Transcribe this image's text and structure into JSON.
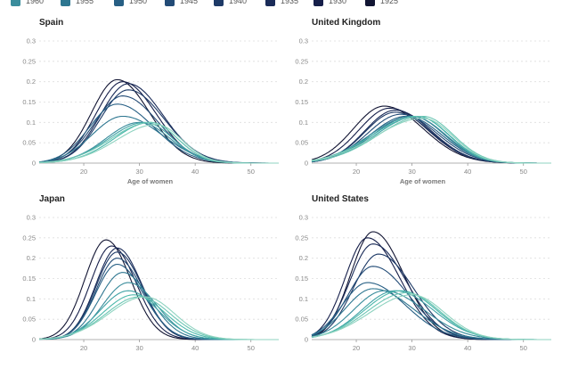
{
  "legend": [
    {
      "label": "1960",
      "color": "#3a8d9c"
    },
    {
      "label": "1955",
      "color": "#2d7690"
    },
    {
      "label": "1950",
      "color": "#275f84"
    },
    {
      "label": "1945",
      "color": "#224b76"
    },
    {
      "label": "1940",
      "color": "#1e3a67"
    },
    {
      "label": "1935",
      "color": "#1a2b58"
    },
    {
      "label": "1930",
      "color": "#161f4a"
    },
    {
      "label": "1925",
      "color": "#121533"
    }
  ],
  "chart_data": [
    {
      "type": "line",
      "title": "Spain",
      "xlabel": "Age of women",
      "ylabel": "",
      "xlim": [
        12,
        55
      ],
      "ylim": [
        0,
        0.3
      ],
      "xticks": [
        20,
        30,
        40,
        50
      ],
      "yticks": [
        0,
        0.05,
        0.1,
        0.15,
        0.2,
        0.25,
        0.3
      ],
      "grid": true,
      "series_params": [
        {
          "peak": 26,
          "h": 0.205,
          "sl": 4.6,
          "sr": 5.8,
          "color": "#121533"
        },
        {
          "peak": 27,
          "h": 0.2,
          "sl": 4.8,
          "sr": 6.0,
          "color": "#161f4a"
        },
        {
          "peak": 28,
          "h": 0.195,
          "sl": 5.0,
          "sr": 6.2,
          "color": "#1a2b58"
        },
        {
          "peak": 28,
          "h": 0.18,
          "sl": 5.0,
          "sr": 6.4,
          "color": "#1e3a67"
        },
        {
          "peak": 27,
          "h": 0.165,
          "sl": 5.0,
          "sr": 6.4,
          "color": "#224b76"
        },
        {
          "peak": 26,
          "h": 0.145,
          "sl": 5.0,
          "sr": 6.6,
          "color": "#275f84"
        },
        {
          "peak": 27,
          "h": 0.115,
          "sl": 5.5,
          "sr": 7.0,
          "color": "#2d7690"
        },
        {
          "peak": 30,
          "h": 0.1,
          "sl": 6.0,
          "sr": 5.5,
          "color": "#3a8d9c"
        },
        {
          "peak": 31,
          "h": 0.1,
          "sl": 6.5,
          "sr": 5.0,
          "color": "#41a3a6"
        },
        {
          "peak": 32,
          "h": 0.1,
          "sl": 6.5,
          "sr": 4.8,
          "color": "#4cb8ab"
        },
        {
          "peak": 32,
          "h": 0.1,
          "sl": 7.0,
          "sr": 4.8,
          "color": "#6cc6b4"
        },
        {
          "peak": 33,
          "h": 0.095,
          "sl": 7.0,
          "sr": 4.6,
          "color": "#8fd3c0"
        }
      ]
    },
    {
      "type": "line",
      "title": "United Kingdom",
      "xlabel": "Age of women",
      "ylabel": "",
      "xlim": [
        12,
        55
      ],
      "ylim": [
        0,
        0.3
      ],
      "xticks": [
        20,
        30,
        40,
        50
      ],
      "yticks": [
        0,
        0.05,
        0.1,
        0.15,
        0.2,
        0.25,
        0.3
      ],
      "grid": true,
      "series_params": [
        {
          "peak": 25,
          "h": 0.14,
          "sl": 5.5,
          "sr": 7.0,
          "color": "#121533"
        },
        {
          "peak": 26,
          "h": 0.135,
          "sl": 5.5,
          "sr": 6.8,
          "color": "#161f4a"
        },
        {
          "peak": 27,
          "h": 0.13,
          "sl": 5.5,
          "sr": 6.5,
          "color": "#1a2b58"
        },
        {
          "peak": 27,
          "h": 0.125,
          "sl": 5.5,
          "sr": 6.5,
          "color": "#1e3a67"
        },
        {
          "peak": 28,
          "h": 0.12,
          "sl": 6.0,
          "sr": 6.5,
          "color": "#224b76"
        },
        {
          "peak": 29,
          "h": 0.115,
          "sl": 6.5,
          "sr": 6.3,
          "color": "#275f84"
        },
        {
          "peak": 30,
          "h": 0.115,
          "sl": 7.0,
          "sr": 6.0,
          "color": "#2d7690"
        },
        {
          "peak": 30,
          "h": 0.115,
          "sl": 7.5,
          "sr": 5.8,
          "color": "#3a8d9c"
        },
        {
          "peak": 31,
          "h": 0.115,
          "sl": 7.5,
          "sr": 5.6,
          "color": "#41a3a6"
        },
        {
          "peak": 31,
          "h": 0.115,
          "sl": 8.0,
          "sr": 5.5,
          "color": "#4cb8ab"
        },
        {
          "peak": 32,
          "h": 0.115,
          "sl": 8.0,
          "sr": 5.4,
          "color": "#6cc6b4"
        },
        {
          "peak": 32,
          "h": 0.11,
          "sl": 8.5,
          "sr": 5.3,
          "color": "#8fd3c0"
        }
      ]
    },
    {
      "type": "line",
      "title": "Japan",
      "xlabel": "",
      "ylabel": "",
      "xlim": [
        12,
        55
      ],
      "ylim": [
        0,
        0.3
      ],
      "xticks": [
        20,
        30,
        40,
        50
      ],
      "yticks": [
        0,
        0.05,
        0.1,
        0.15,
        0.2,
        0.25,
        0.3
      ],
      "grid": true,
      "series_params": [
        {
          "peak": 24,
          "h": 0.245,
          "sl": 3.8,
          "sr": 4.4,
          "color": "#121533"
        },
        {
          "peak": 25,
          "h": 0.23,
          "sl": 3.8,
          "sr": 4.4,
          "color": "#161f4a"
        },
        {
          "peak": 26,
          "h": 0.225,
          "sl": 3.8,
          "sr": 4.4,
          "color": "#1a2b58"
        },
        {
          "peak": 26,
          "h": 0.215,
          "sl": 3.8,
          "sr": 4.5,
          "color": "#1e3a67"
        },
        {
          "peak": 26,
          "h": 0.2,
          "sl": 3.8,
          "sr": 4.6,
          "color": "#224b76"
        },
        {
          "peak": 26,
          "h": 0.185,
          "sl": 3.9,
          "sr": 4.7,
          "color": "#275f84"
        },
        {
          "peak": 27,
          "h": 0.165,
          "sl": 4.2,
          "sr": 4.9,
          "color": "#2d7690"
        },
        {
          "peak": 28,
          "h": 0.14,
          "sl": 4.6,
          "sr": 5.1,
          "color": "#3a8d9c"
        },
        {
          "peak": 28,
          "h": 0.12,
          "sl": 5.0,
          "sr": 5.3,
          "color": "#41a3a6"
        },
        {
          "peak": 29,
          "h": 0.11,
          "sl": 5.5,
          "sr": 5.5,
          "color": "#4cb8ab"
        },
        {
          "peak": 30,
          "h": 0.105,
          "sl": 6.0,
          "sr": 5.5,
          "color": "#6cc6b4"
        },
        {
          "peak": 31,
          "h": 0.105,
          "sl": 6.5,
          "sr": 5.3,
          "color": "#8fd3c0"
        }
      ]
    },
    {
      "type": "line",
      "title": "United States",
      "xlabel": "",
      "ylabel": "",
      "xlim": [
        12,
        55
      ],
      "ylim": [
        0,
        0.3
      ],
      "xticks": [
        20,
        30,
        40,
        50
      ],
      "yticks": [
        0,
        0.05,
        0.1,
        0.15,
        0.2,
        0.25,
        0.3
      ],
      "grid": true,
      "series_params": [
        {
          "peak": 23,
          "h": 0.265,
          "sl": 4.0,
          "sr": 5.5,
          "color": "#121533"
        },
        {
          "peak": 22,
          "h": 0.25,
          "sl": 4.0,
          "sr": 5.8,
          "color": "#161f4a"
        },
        {
          "peak": 23,
          "h": 0.235,
          "sl": 4.2,
          "sr": 6.0,
          "color": "#1a2b58"
        },
        {
          "peak": 24,
          "h": 0.21,
          "sl": 4.5,
          "sr": 6.2,
          "color": "#1e3a67"
        },
        {
          "peak": 23,
          "h": 0.18,
          "sl": 4.5,
          "sr": 6.4,
          "color": "#224b76"
        },
        {
          "peak": 22,
          "h": 0.14,
          "sl": 4.5,
          "sr": 6.8,
          "color": "#275f84"
        },
        {
          "peak": 23,
          "h": 0.125,
          "sl": 5.0,
          "sr": 7.2,
          "color": "#2d7690"
        },
        {
          "peak": 25,
          "h": 0.12,
          "sl": 5.5,
          "sr": 7.2,
          "color": "#3a8d9c"
        },
        {
          "peak": 27,
          "h": 0.12,
          "sl": 6.0,
          "sr": 6.8,
          "color": "#41a3a6"
        },
        {
          "peak": 28,
          "h": 0.12,
          "sl": 6.5,
          "sr": 6.4,
          "color": "#4cb8ab"
        },
        {
          "peak": 29,
          "h": 0.115,
          "sl": 7.0,
          "sr": 6.0,
          "color": "#6cc6b4"
        },
        {
          "peak": 30,
          "h": 0.11,
          "sl": 7.5,
          "sr": 5.8,
          "color": "#8fd3c0"
        }
      ]
    }
  ]
}
